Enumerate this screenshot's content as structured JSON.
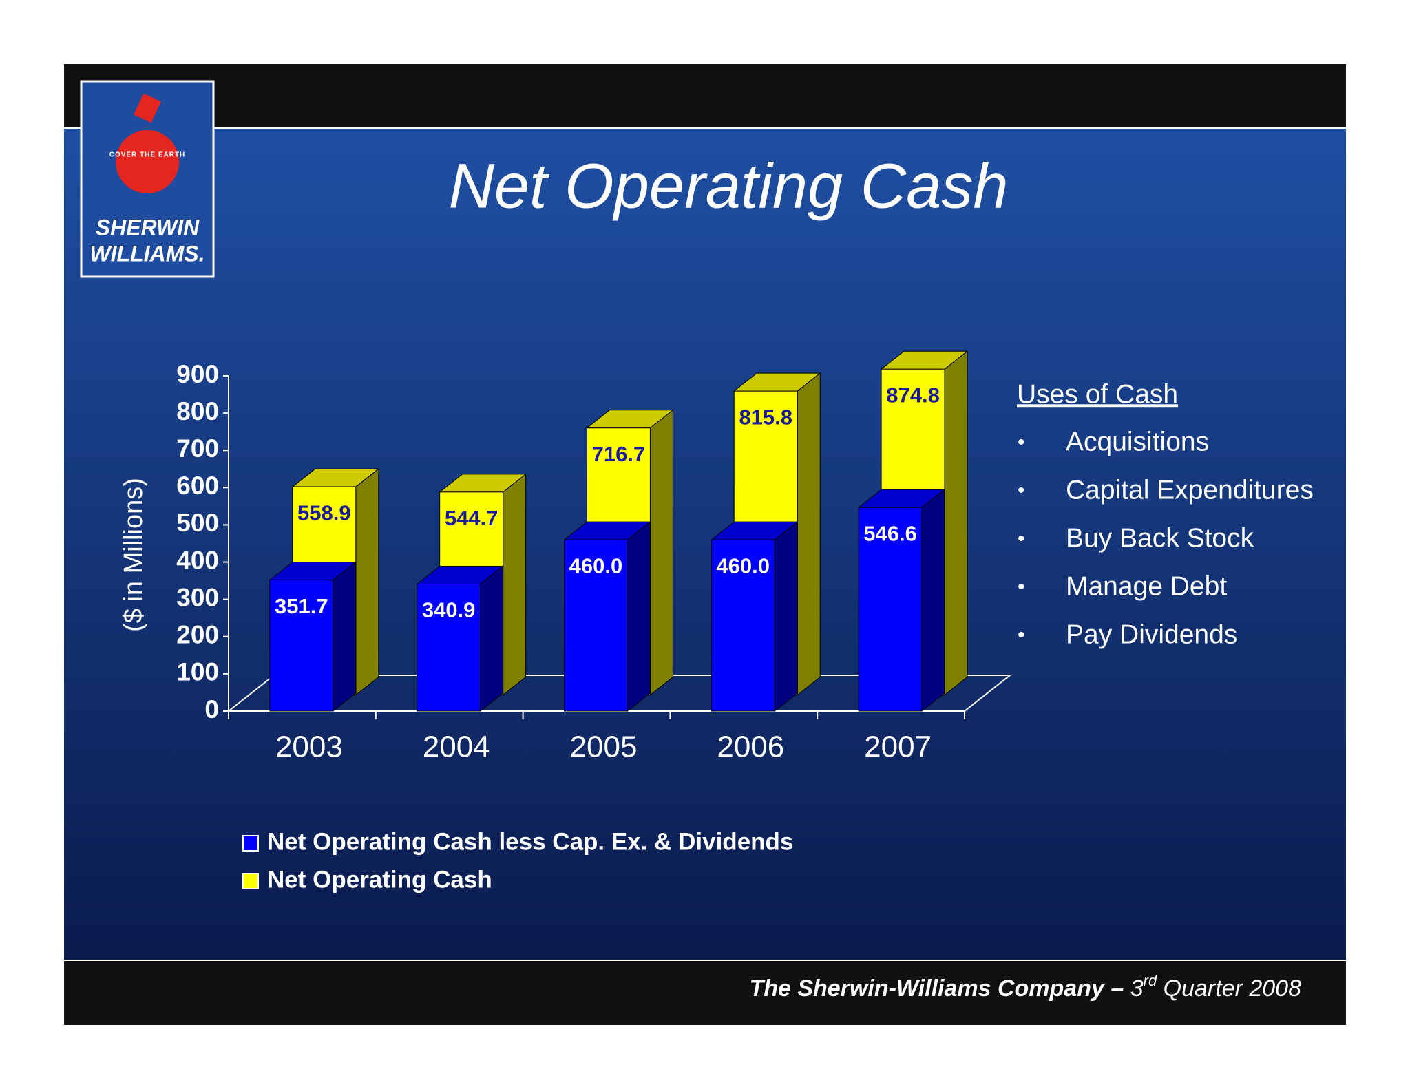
{
  "chart_data": {
    "type": "bar3d",
    "title": "Net Operating Cash",
    "y_label": "($ in Millions)",
    "categories": [
      "2003",
      "2004",
      "2005",
      "2006",
      "2007"
    ],
    "series": [
      {
        "name": "Net Operating Cash less Cap. Ex. & Dividends",
        "color": "#0000ff",
        "values": [
          351.7,
          340.9,
          460.0,
          460.0,
          546.6
        ],
        "value_labels": [
          "351.7",
          "340.9",
          "460.0",
          "460.0",
          "546.6"
        ]
      },
      {
        "name": "Net Operating Cash",
        "color": "#ffff00",
        "values": [
          558.9,
          544.7,
          716.7,
          815.8,
          874.8
        ]
      }
    ],
    "ylim": [
      0,
      900
    ],
    "yticks": [
      0,
      100,
      200,
      300,
      400,
      500,
      600,
      700,
      800,
      900
    ],
    "grid": false
  },
  "logo": {
    "line1": "SHERWIN",
    "line2": "WILLIAMS.",
    "globe": "COVER THE EARTH"
  },
  "uses_of_cash": {
    "heading": "Uses of Cash",
    "items": [
      "Acquisitions",
      "Capital Expenditures",
      "Buy Back Stock",
      "Manage Debt",
      "Pay Dividends"
    ]
  },
  "footer": {
    "company": "The Sherwin-Williams Company –",
    "number": "3",
    "suffix": "rd",
    "rest": "Quarter 2008"
  }
}
